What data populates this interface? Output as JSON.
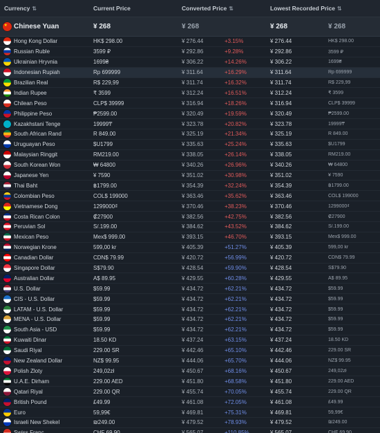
{
  "header": {
    "currency": "Currency",
    "current_price": "Current Price",
    "converted_price": "Converted Price",
    "lowest_price": "Lowest Recorded Price",
    "sort_icon": "⇅"
  },
  "featured": {
    "name": "Chinese Yuan",
    "current": "¥ 268",
    "converted": "¥ 268",
    "lowest": "¥ 268",
    "lowest_current": "¥ 268",
    "flag_colors": [
      "#de2910",
      "#ffde00"
    ]
  },
  "rows": [
    {
      "name": "Hong Kong Dollar",
      "current": "HK$ 298.00",
      "converted": "¥ 276.44",
      "pct": "+3.15%",
      "lowest": "¥ 276.44",
      "lowest_current": "HK$ 298.00",
      "pct_color": "red",
      "flag": [
        "#de2910",
        "#ffffff"
      ]
    },
    {
      "name": "Russian Ruble",
      "current": "3599 ₽",
      "converted": "¥ 292.86",
      "pct": "+9.28%",
      "lowest": "¥ 292.86",
      "lowest_current": "3599 ₽",
      "pct_color": "red",
      "flag": [
        "#ffffff",
        "#0039a6",
        "#d52b1e"
      ]
    },
    {
      "name": "Ukrainian Hryvnia",
      "current": "1699₴",
      "converted": "¥ 306.22",
      "pct": "+14.26%",
      "lowest": "¥ 306.22",
      "lowest_current": "1699₴",
      "pct_color": "red",
      "flag": [
        "#0057b7",
        "#ffd700"
      ]
    },
    {
      "name": "Indonesian Rupiah",
      "current": "Rp 699999",
      "converted": "¥ 311.64",
      "pct": "+16.29%",
      "lowest": "¥ 311.64",
      "lowest_current": "Rp 699999",
      "pct_color": "red",
      "flag": [
        "#ce1126",
        "#ffffff"
      ],
      "highlight": true
    },
    {
      "name": "Brazilian Real",
      "current": "R$ 229,99",
      "converted": "¥ 311.74",
      "pct": "+16.32%",
      "lowest": "¥ 311.74",
      "lowest_current": "R$ 229,99",
      "pct_color": "red",
      "flag": [
        "#009c3b",
        "#ffdf00"
      ]
    },
    {
      "name": "Indian Rupee",
      "current": "₹ 3599",
      "converted": "¥ 312.24",
      "pct": "+16.51%",
      "lowest": "¥ 312.24",
      "lowest_current": "₹ 3599",
      "pct_color": "red",
      "flag": [
        "#ff9933",
        "#ffffff",
        "#138808"
      ]
    },
    {
      "name": "Chilean Peso",
      "current": "CLP$ 39999",
      "converted": "¥ 316.94",
      "pct": "+18.26%",
      "lowest": "¥ 316.94",
      "lowest_current": "CLP$ 39999",
      "pct_color": "red",
      "flag": [
        "#ffffff",
        "#d52b1e"
      ]
    },
    {
      "name": "Philippine Peso",
      "current": "₱2599.00",
      "converted": "¥ 320.49",
      "pct": "+19.59%",
      "lowest": "¥ 320.49",
      "lowest_current": "₱2599.00",
      "pct_color": "red",
      "flag": [
        "#0038a8",
        "#ce1126"
      ]
    },
    {
      "name": "Kazakhstani Tenge",
      "current": "19999₸",
      "converted": "¥ 323.78",
      "pct": "+20.82%",
      "lowest": "¥ 323.78",
      "lowest_current": "19999₸",
      "pct_color": "red",
      "flag": [
        "#00afca",
        "#00afca"
      ]
    },
    {
      "name": "South African Rand",
      "current": "R 849.00",
      "converted": "¥ 325.19",
      "pct": "+21.34%",
      "lowest": "¥ 325.19",
      "lowest_current": "R 849.00",
      "pct_color": "red",
      "flag": [
        "#007749",
        "#ffb612",
        "#de3831"
      ]
    },
    {
      "name": "Uruguayan Peso",
      "current": "$U1799",
      "converted": "¥ 335.63",
      "pct": "+25.24%",
      "lowest": "¥ 335.63",
      "lowest_current": "$U1799",
      "pct_color": "red",
      "flag": [
        "#ffffff",
        "#0038a8"
      ]
    },
    {
      "name": "Malaysian Ringgit",
      "current": "RM219.00",
      "converted": "¥ 338.05",
      "pct": "+26.14%",
      "lowest": "¥ 338.05",
      "lowest_current": "RM219.00",
      "pct_color": "red",
      "flag": [
        "#cc0001",
        "#ffffff"
      ]
    },
    {
      "name": "South Korean Won",
      "current": "₩ 64800",
      "converted": "¥ 340.26",
      "pct": "+26.96%",
      "lowest": "¥ 340.26",
      "lowest_current": "₩ 64800",
      "pct_color": "red",
      "flag": [
        "#ffffff",
        "#cd2e3a"
      ]
    },
    {
      "name": "Japanese Yen",
      "current": "¥ 7590",
      "converted": "¥ 351.02",
      "pct": "+30.98%",
      "lowest": "¥ 351.02",
      "lowest_current": "¥ 7590",
      "pct_color": "red",
      "flag": [
        "#ffffff",
        "#bc002d"
      ]
    },
    {
      "name": "Thai Baht",
      "current": "฿1799.00",
      "converted": "¥ 354.39",
      "pct": "+32.24%",
      "lowest": "¥ 354.39",
      "lowest_current": "฿1799.00",
      "pct_color": "red",
      "flag": [
        "#a51931",
        "#f4f5f8",
        "#2d2a4a"
      ]
    },
    {
      "name": "Colombian Peso",
      "current": "COL$ 199000",
      "converted": "¥ 363.46",
      "pct": "+35.62%",
      "lowest": "¥ 363.46",
      "lowest_current": "COL$ 199000",
      "pct_color": "red",
      "flag": [
        "#fcd116",
        "#003893",
        "#ce1126"
      ]
    },
    {
      "name": "Vietnamese Dong",
      "current": "1299000₫",
      "converted": "¥ 370.46",
      "pct": "+38.23%",
      "lowest": "¥ 370.46",
      "lowest_current": "1299000₫",
      "pct_color": "red",
      "flag": [
        "#da251d",
        "#ffff00"
      ]
    },
    {
      "name": "Costa Rican Colon",
      "current": "₡27900",
      "converted": "¥ 382.56",
      "pct": "+42.75%",
      "lowest": "¥ 382.56",
      "lowest_current": "₡27900",
      "pct_color": "red",
      "flag": [
        "#002b7f",
        "#ffffff",
        "#ce1126"
      ]
    },
    {
      "name": "Peruvian Sol",
      "current": "S/.199.00",
      "converted": "¥ 384.62",
      "pct": "+43.52%",
      "lowest": "¥ 384.62",
      "lowest_current": "S/.199.00",
      "pct_color": "red",
      "flag": [
        "#d91023",
        "#ffffff",
        "#d91023"
      ]
    },
    {
      "name": "Mexican Peso",
      "current": "Mex$ 999.00",
      "converted": "¥ 393.15",
      "pct": "+46.70%",
      "lowest": "¥ 393.15",
      "lowest_current": "Mex$ 999.00",
      "pct_color": "red",
      "flag": [
        "#006847",
        "#ffffff",
        "#ce1126"
      ]
    },
    {
      "name": "Norwegian Krone",
      "current": "599,00 kr",
      "converted": "¥ 405.39",
      "pct": "+51.27%",
      "lowest": "¥ 405.39",
      "lowest_current": "599,00 kr",
      "pct_color": "blue",
      "flag": [
        "#ba0c2f",
        "#ffffff",
        "#00205b"
      ]
    },
    {
      "name": "Canadian Dollar",
      "current": "CDN$ 79.99",
      "converted": "¥ 420.72",
      "pct": "+56.99%",
      "lowest": "¥ 420.72",
      "lowest_current": "CDN$ 79.99",
      "pct_color": "blue",
      "flag": [
        "#ff0000",
        "#ffffff",
        "#ff0000"
      ]
    },
    {
      "name": "Singapore Dollar",
      "current": "S$79.90",
      "converted": "¥ 428.54",
      "pct": "+59.90%",
      "lowest": "¥ 428.54",
      "lowest_current": "S$79.90",
      "pct_color": "blue",
      "flag": [
        "#ef3340",
        "#ffffff"
      ]
    },
    {
      "name": "Australian Dollar",
      "current": "A$ 89.95",
      "converted": "¥ 429.55",
      "pct": "+60.28%",
      "lowest": "¥ 429.55",
      "lowest_current": "A$ 89.95",
      "pct_color": "blue",
      "flag": [
        "#012169",
        "#e4002b"
      ]
    },
    {
      "name": "U.S. Dollar",
      "current": "$59.99",
      "converted": "¥ 434.72",
      "pct": "+62.21%",
      "lowest": "¥ 434.72",
      "lowest_current": "$59.99",
      "pct_color": "blue",
      "flag": [
        "#b22234",
        "#ffffff",
        "#3c3b6e"
      ]
    },
    {
      "name": "CIS - U.S. Dollar",
      "current": "$59.99",
      "converted": "¥ 434.72",
      "pct": "+62.21%",
      "lowest": "¥ 434.72",
      "lowest_current": "$59.99",
      "pct_color": "blue",
      "flag": [
        "#1c6fc9",
        "#ffffff"
      ]
    },
    {
      "name": "LATAM - U.S. Dollar",
      "current": "$59.99",
      "converted": "¥ 434.72",
      "pct": "+62.21%",
      "lowest": "¥ 434.72",
      "lowest_current": "$59.99",
      "pct_color": "blue",
      "flag": [
        "#2a7d3c",
        "#ffffff"
      ]
    },
    {
      "name": "MENA - U.S. Dollar",
      "current": "$59.99",
      "converted": "¥ 434.72",
      "pct": "+62.21%",
      "lowest": "¥ 434.72",
      "lowest_current": "$59.99",
      "pct_color": "blue",
      "flag": [
        "#d8a13a",
        "#ffffff"
      ]
    },
    {
      "name": "South Asia - USD",
      "current": "$59.99",
      "converted": "¥ 434.72",
      "pct": "+62.21%",
      "lowest": "¥ 434.72",
      "lowest_current": "$59.99",
      "pct_color": "blue",
      "flag": [
        "#1f8f4a",
        "#ffffff"
      ]
    },
    {
      "name": "Kuwaiti Dinar",
      "current": "18.50 KD",
      "converted": "¥ 437.24",
      "pct": "+63.15%",
      "lowest": "¥ 437.24",
      "lowest_current": "18.50 KD",
      "pct_color": "blue",
      "flag": [
        "#007a3d",
        "#ffffff",
        "#ce1126"
      ]
    },
    {
      "name": "Saudi Riyal",
      "current": "229.00 SR",
      "converted": "¥ 442.46",
      "pct": "+65.10%",
      "lowest": "¥ 442.46",
      "lowest_current": "229.00 SR",
      "pct_color": "blue",
      "flag": [
        "#006c35",
        "#ffffff"
      ]
    },
    {
      "name": "New Zealand Dollar",
      "current": "NZ$ 99.95",
      "converted": "¥ 444.06",
      "pct": "+65.70%",
      "lowest": "¥ 444.06",
      "lowest_current": "NZ$ 99.95",
      "pct_color": "blue",
      "flag": [
        "#012169",
        "#c8102e"
      ]
    },
    {
      "name": "Polish Zloty",
      "current": "249,02zł",
      "converted": "¥ 450.67",
      "pct": "+68.16%",
      "lowest": "¥ 450.67",
      "lowest_current": "249,02zł",
      "pct_color": "blue",
      "flag": [
        "#ffffff",
        "#dc143c"
      ]
    },
    {
      "name": "U.A.E. Dirham",
      "current": "229.00 AED",
      "converted": "¥ 451.80",
      "pct": "+68.58%",
      "lowest": "¥ 451.80",
      "lowest_current": "229.00 AED",
      "pct_color": "blue",
      "flag": [
        "#00732f",
        "#ffffff",
        "#000000"
      ]
    },
    {
      "name": "Qatari Riyal",
      "current": "229.00 QR",
      "converted": "¥ 455.74",
      "pct": "+70.05%",
      "lowest": "¥ 455.74",
      "lowest_current": "229.00 QR",
      "pct_color": "blue",
      "flag": [
        "#ffffff",
        "#8a1538"
      ]
    },
    {
      "name": "British Pound",
      "current": "£49.99",
      "converted": "¥ 461.08",
      "pct": "+72.05%",
      "lowest": "¥ 461.08",
      "lowest_current": "£49.99",
      "pct_color": "blue",
      "flag": [
        "#012169",
        "#c8102e"
      ]
    },
    {
      "name": "Euro",
      "current": "59,99€",
      "converted": "¥ 469.81",
      "pct": "+75.31%",
      "lowest": "¥ 469.81",
      "lowest_current": "59,99€",
      "pct_color": "blue",
      "flag": [
        "#003399",
        "#ffcc00"
      ]
    },
    {
      "name": "Israeli New Shekel",
      "current": "₪249.00",
      "converted": "¥ 479.52",
      "pct": "+78.93%",
      "lowest": "¥ 479.52",
      "lowest_current": "₪249.00",
      "pct_color": "blue",
      "flag": [
        "#ffffff",
        "#0038b8"
      ]
    },
    {
      "name": "Swiss Franc",
      "current": "CHF 69.90",
      "converted": "¥ 565.07",
      "pct": "+110.85%",
      "lowest": "¥ 565.07",
      "lowest_current": "CHF 69.90",
      "pct_color": "blue",
      "flag": [
        "#d52b1e",
        "#ffffff"
      ]
    }
  ]
}
